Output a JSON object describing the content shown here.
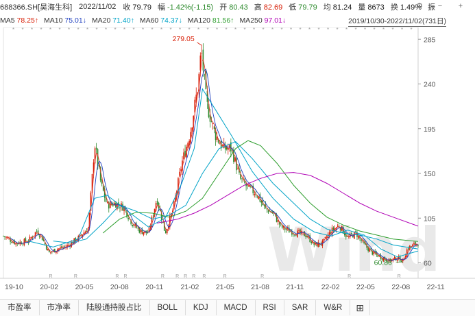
{
  "header": {
    "ticker": "688366.SH[昊海生科]",
    "date": "2022/11/02",
    "items": [
      {
        "label": "收",
        "value": "79.79",
        "color": "#1a1a1a"
      },
      {
        "label": "幅",
        "value": "-1.42%(-1.15)",
        "color": "#2e8b2e"
      },
      {
        "label": "开",
        "value": "80.43",
        "color": "#2e8b2e"
      },
      {
        "label": "高",
        "value": "82.69",
        "color": "#d81e06"
      },
      {
        "label": "低",
        "value": "79.79",
        "color": "#2e8b2e"
      },
      {
        "label": "均",
        "value": "81.24",
        "color": "#1a1a1a"
      },
      {
        "label": "量",
        "value": "8673",
        "color": "#1a1a1a"
      },
      {
        "label": "换",
        "value": "1.49%",
        "color": "#1a1a1a"
      },
      {
        "label": "振",
        "value": "",
        "color": "#1a1a1a"
      }
    ],
    "icons": [
      "gear-icon",
      "minus-icon",
      "plus-icon"
    ]
  },
  "ma_bar": {
    "items": [
      {
        "label": "MA5",
        "value": "78.25↑",
        "color": "#d81e06"
      },
      {
        "label": "MA10",
        "value": "75.01↓",
        "color": "#1f3fbf"
      },
      {
        "label": "MA20",
        "value": "71.40↑",
        "color": "#00a3c7"
      },
      {
        "label": "MA60",
        "value": "74.37↓",
        "color": "#00a3c7"
      },
      {
        "label": "MA120",
        "value": "81.56↑",
        "color": "#2e9e2e"
      },
      {
        "label": "MA250",
        "value": "97.01↓",
        "color": "#b000b5"
      }
    ],
    "range": "2019/10/30-2022/11/02(731日)"
  },
  "chart_data": {
    "type": "candlestick",
    "y_ticks": [
      "285",
      "240",
      "195",
      "150",
      "105",
      "60"
    ],
    "ylim": [
      50,
      290
    ],
    "x_ticks": [
      "19-10",
      "20-02",
      "20-05",
      "20-08",
      "20-11",
      "21-02",
      "21-05",
      "21-08",
      "21-11",
      "22-02",
      "22-05",
      "22-08",
      "22-11"
    ],
    "annotations": [
      {
        "text": "279.05",
        "t": 0.477,
        "y": 279.05,
        "color": "#d81e06"
      },
      {
        "text": "60.86",
        "t": 0.963,
        "y": 60.86,
        "color": "#2e8b2e"
      }
    ],
    "watermark": "Wind",
    "price_anchors": [
      [
        0,
        87
      ],
      [
        0.03,
        80
      ],
      [
        0.06,
        82
      ],
      [
        0.08,
        92
      ],
      [
        0.09,
        88
      ],
      [
        0.11,
        70
      ],
      [
        0.13,
        74
      ],
      [
        0.15,
        76
      ],
      [
        0.18,
        85
      ],
      [
        0.205,
        95
      ],
      [
        0.22,
        180
      ],
      [
        0.235,
        140
      ],
      [
        0.25,
        118
      ],
      [
        0.27,
        120
      ],
      [
        0.29,
        116
      ],
      [
        0.31,
        100
      ],
      [
        0.33,
        92
      ],
      [
        0.35,
        90
      ],
      [
        0.37,
        125
      ],
      [
        0.39,
        90
      ],
      [
        0.41,
        115
      ],
      [
        0.43,
        160
      ],
      [
        0.45,
        190
      ],
      [
        0.47,
        240
      ],
      [
        0.477,
        275
      ],
      [
        0.49,
        220
      ],
      [
        0.51,
        190
      ],
      [
        0.53,
        175
      ],
      [
        0.55,
        175
      ],
      [
        0.57,
        145
      ],
      [
        0.59,
        135
      ],
      [
        0.61,
        130
      ],
      [
        0.63,
        115
      ],
      [
        0.65,
        110
      ],
      [
        0.67,
        96
      ],
      [
        0.69,
        92
      ],
      [
        0.71,
        90
      ],
      [
        0.73,
        88
      ],
      [
        0.75,
        78
      ],
      [
        0.77,
        80
      ],
      [
        0.79,
        92
      ],
      [
        0.81,
        98
      ],
      [
        0.83,
        85
      ],
      [
        0.85,
        90
      ],
      [
        0.87,
        78
      ],
      [
        0.89,
        70
      ],
      [
        0.91,
        66
      ],
      [
        0.93,
        62
      ],
      [
        0.95,
        65
      ],
      [
        0.963,
        62
      ],
      [
        0.975,
        75
      ],
      [
        1.0,
        80
      ]
    ],
    "ma_lines": [
      {
        "name": "MA20",
        "color": "#00a3c7",
        "points": [
          [
            0.06,
            82
          ],
          [
            0.12,
            76
          ],
          [
            0.18,
            84
          ],
          [
            0.22,
            125
          ],
          [
            0.25,
            128
          ],
          [
            0.3,
            112
          ],
          [
            0.35,
            96
          ],
          [
            0.39,
            105
          ],
          [
            0.43,
            140
          ],
          [
            0.46,
            175
          ],
          [
            0.48,
            235
          ],
          [
            0.51,
            215
          ],
          [
            0.55,
            188
          ],
          [
            0.6,
            152
          ],
          [
            0.65,
            125
          ],
          [
            0.7,
            104
          ],
          [
            0.75,
            91
          ],
          [
            0.79,
            87
          ],
          [
            0.83,
            93
          ],
          [
            0.87,
            88
          ],
          [
            0.91,
            74
          ],
          [
            0.95,
            66
          ],
          [
            1.0,
            72
          ]
        ]
      },
      {
        "name": "MA60",
        "color": "#00a3c7",
        "points": [
          [
            0.12,
            82
          ],
          [
            0.16,
            80
          ],
          [
            0.2,
            84
          ],
          [
            0.24,
            100
          ],
          [
            0.28,
            118
          ],
          [
            0.32,
            112
          ],
          [
            0.36,
            104
          ],
          [
            0.4,
            108
          ],
          [
            0.44,
            118
          ],
          [
            0.48,
            150
          ],
          [
            0.52,
            175
          ],
          [
            0.56,
            182
          ],
          [
            0.6,
            165
          ],
          [
            0.65,
            140
          ],
          [
            0.7,
            120
          ],
          [
            0.74,
            104
          ],
          [
            0.78,
            94
          ],
          [
            0.82,
            90
          ],
          [
            0.86,
            88
          ],
          [
            0.9,
            84
          ],
          [
            0.94,
            78
          ],
          [
            1.0,
            74
          ]
        ]
      },
      {
        "name": "MA120",
        "color": "#2e9e2e",
        "points": [
          [
            0.24,
            90
          ],
          [
            0.28,
            104
          ],
          [
            0.32,
            111
          ],
          [
            0.36,
            110
          ],
          [
            0.4,
            106
          ],
          [
            0.44,
            112
          ],
          [
            0.48,
            125
          ],
          [
            0.52,
            150
          ],
          [
            0.56,
            175
          ],
          [
            0.59,
            183
          ],
          [
            0.62,
            178
          ],
          [
            0.66,
            160
          ],
          [
            0.7,
            138
          ],
          [
            0.74,
            120
          ],
          [
            0.78,
            106
          ],
          [
            0.82,
            98
          ],
          [
            0.86,
            92
          ],
          [
            0.9,
            88
          ],
          [
            0.94,
            84
          ],
          [
            1.0,
            81.6
          ]
        ]
      },
      {
        "name": "MA250",
        "color": "#b000b5",
        "points": [
          [
            0.37,
            100
          ],
          [
            0.42,
            104
          ],
          [
            0.46,
            110
          ],
          [
            0.5,
            118
          ],
          [
            0.54,
            128
          ],
          [
            0.58,
            138
          ],
          [
            0.62,
            145
          ],
          [
            0.66,
            150
          ],
          [
            0.7,
            151
          ],
          [
            0.74,
            148
          ],
          [
            0.78,
            140
          ],
          [
            0.82,
            130
          ],
          [
            0.86,
            120
          ],
          [
            0.9,
            112
          ],
          [
            0.94,
            106
          ],
          [
            1.0,
            97
          ]
        ]
      }
    ]
  },
  "tabs": [
    "市盈率",
    "市净率",
    "陆股通持股占比",
    "BOLL",
    "KDJ",
    "MACD",
    "RSI",
    "SAR",
    "W&R",
    "⊞"
  ]
}
